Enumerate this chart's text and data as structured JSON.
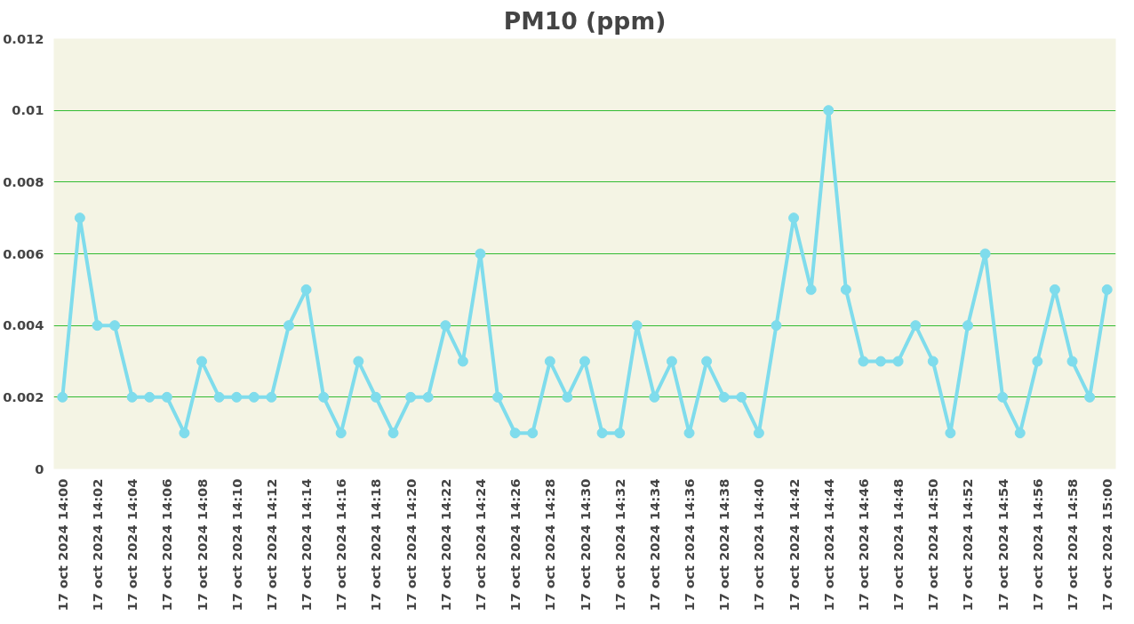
{
  "chart_data": {
    "type": "line",
    "title": "PM10 (ppm)",
    "categories": [
      "17 oct 2024 14:00",
      null,
      "17 oct 2024 14:02",
      null,
      "17 oct 2024 14:04",
      null,
      "17 oct 2024 14:06",
      null,
      "17 oct 2024 14:08",
      null,
      "17 oct 2024 14:10",
      null,
      "17 oct 2024 14:12",
      null,
      "17 oct 2024 14:14",
      null,
      "17 oct 2024 14:16",
      null,
      "17 oct 2024 14:18",
      null,
      "17 oct 2024 14:20",
      null,
      "17 oct 2024 14:22",
      null,
      "17 oct 2024 14:24",
      null,
      "17 oct 2024 14:26",
      null,
      "17 oct 2024 14:28",
      null,
      "17 oct 2024 14:30",
      null,
      "17 oct 2024 14:32",
      null,
      "17 oct 2024 14:34",
      null,
      "17 oct 2024 14:36",
      null,
      "17 oct 2024 14:38",
      null,
      "17 oct 2024 14:40",
      null,
      "17 oct 2024 14:42",
      null,
      "17 oct 2024 14:44",
      null,
      "17 oct 2024 14:46",
      null,
      "17 oct 2024 14:48",
      null,
      "17 oct 2024 14:50",
      null,
      "17 oct 2024 14:52",
      null,
      "17 oct 2024 14:54",
      null,
      "17 oct 2024 14:56",
      null,
      "17 oct 2024 14:58",
      null,
      "17 oct 2024 15:00"
    ],
    "series": [
      {
        "color": "#7fdcec",
        "values": [
          0.002,
          0.007,
          0.004,
          0.004,
          0.002,
          0.002,
          0.002,
          0.001,
          0.003,
          0.002,
          0.002,
          0.002,
          0.002,
          0.004,
          0.005,
          0.002,
          0.001,
          0.003,
          0.002,
          0.001,
          0.002,
          0.002,
          0.004,
          0.003,
          0.006,
          0.002,
          0.001,
          0.001,
          0.003,
          0.002,
          0.003,
          0.001,
          0.001,
          0.004,
          0.002,
          0.003,
          0.001,
          0.003,
          0.002,
          0.002,
          0.001,
          0.004,
          0.007,
          0.005,
          0.01,
          0.005,
          0.003,
          0.003,
          0.003,
          0.004,
          0.003,
          0.001,
          0.004,
          0.006,
          0.002,
          0.001,
          0.003,
          0.005,
          0.003,
          0.002,
          0.005
        ]
      }
    ],
    "ylim": [
      0,
      0.012
    ],
    "yticks": [
      0,
      0.002,
      0.004,
      0.006,
      0.008,
      0.01,
      0.012
    ],
    "grid": "y",
    "marker": "circle",
    "line_style": "solid"
  }
}
